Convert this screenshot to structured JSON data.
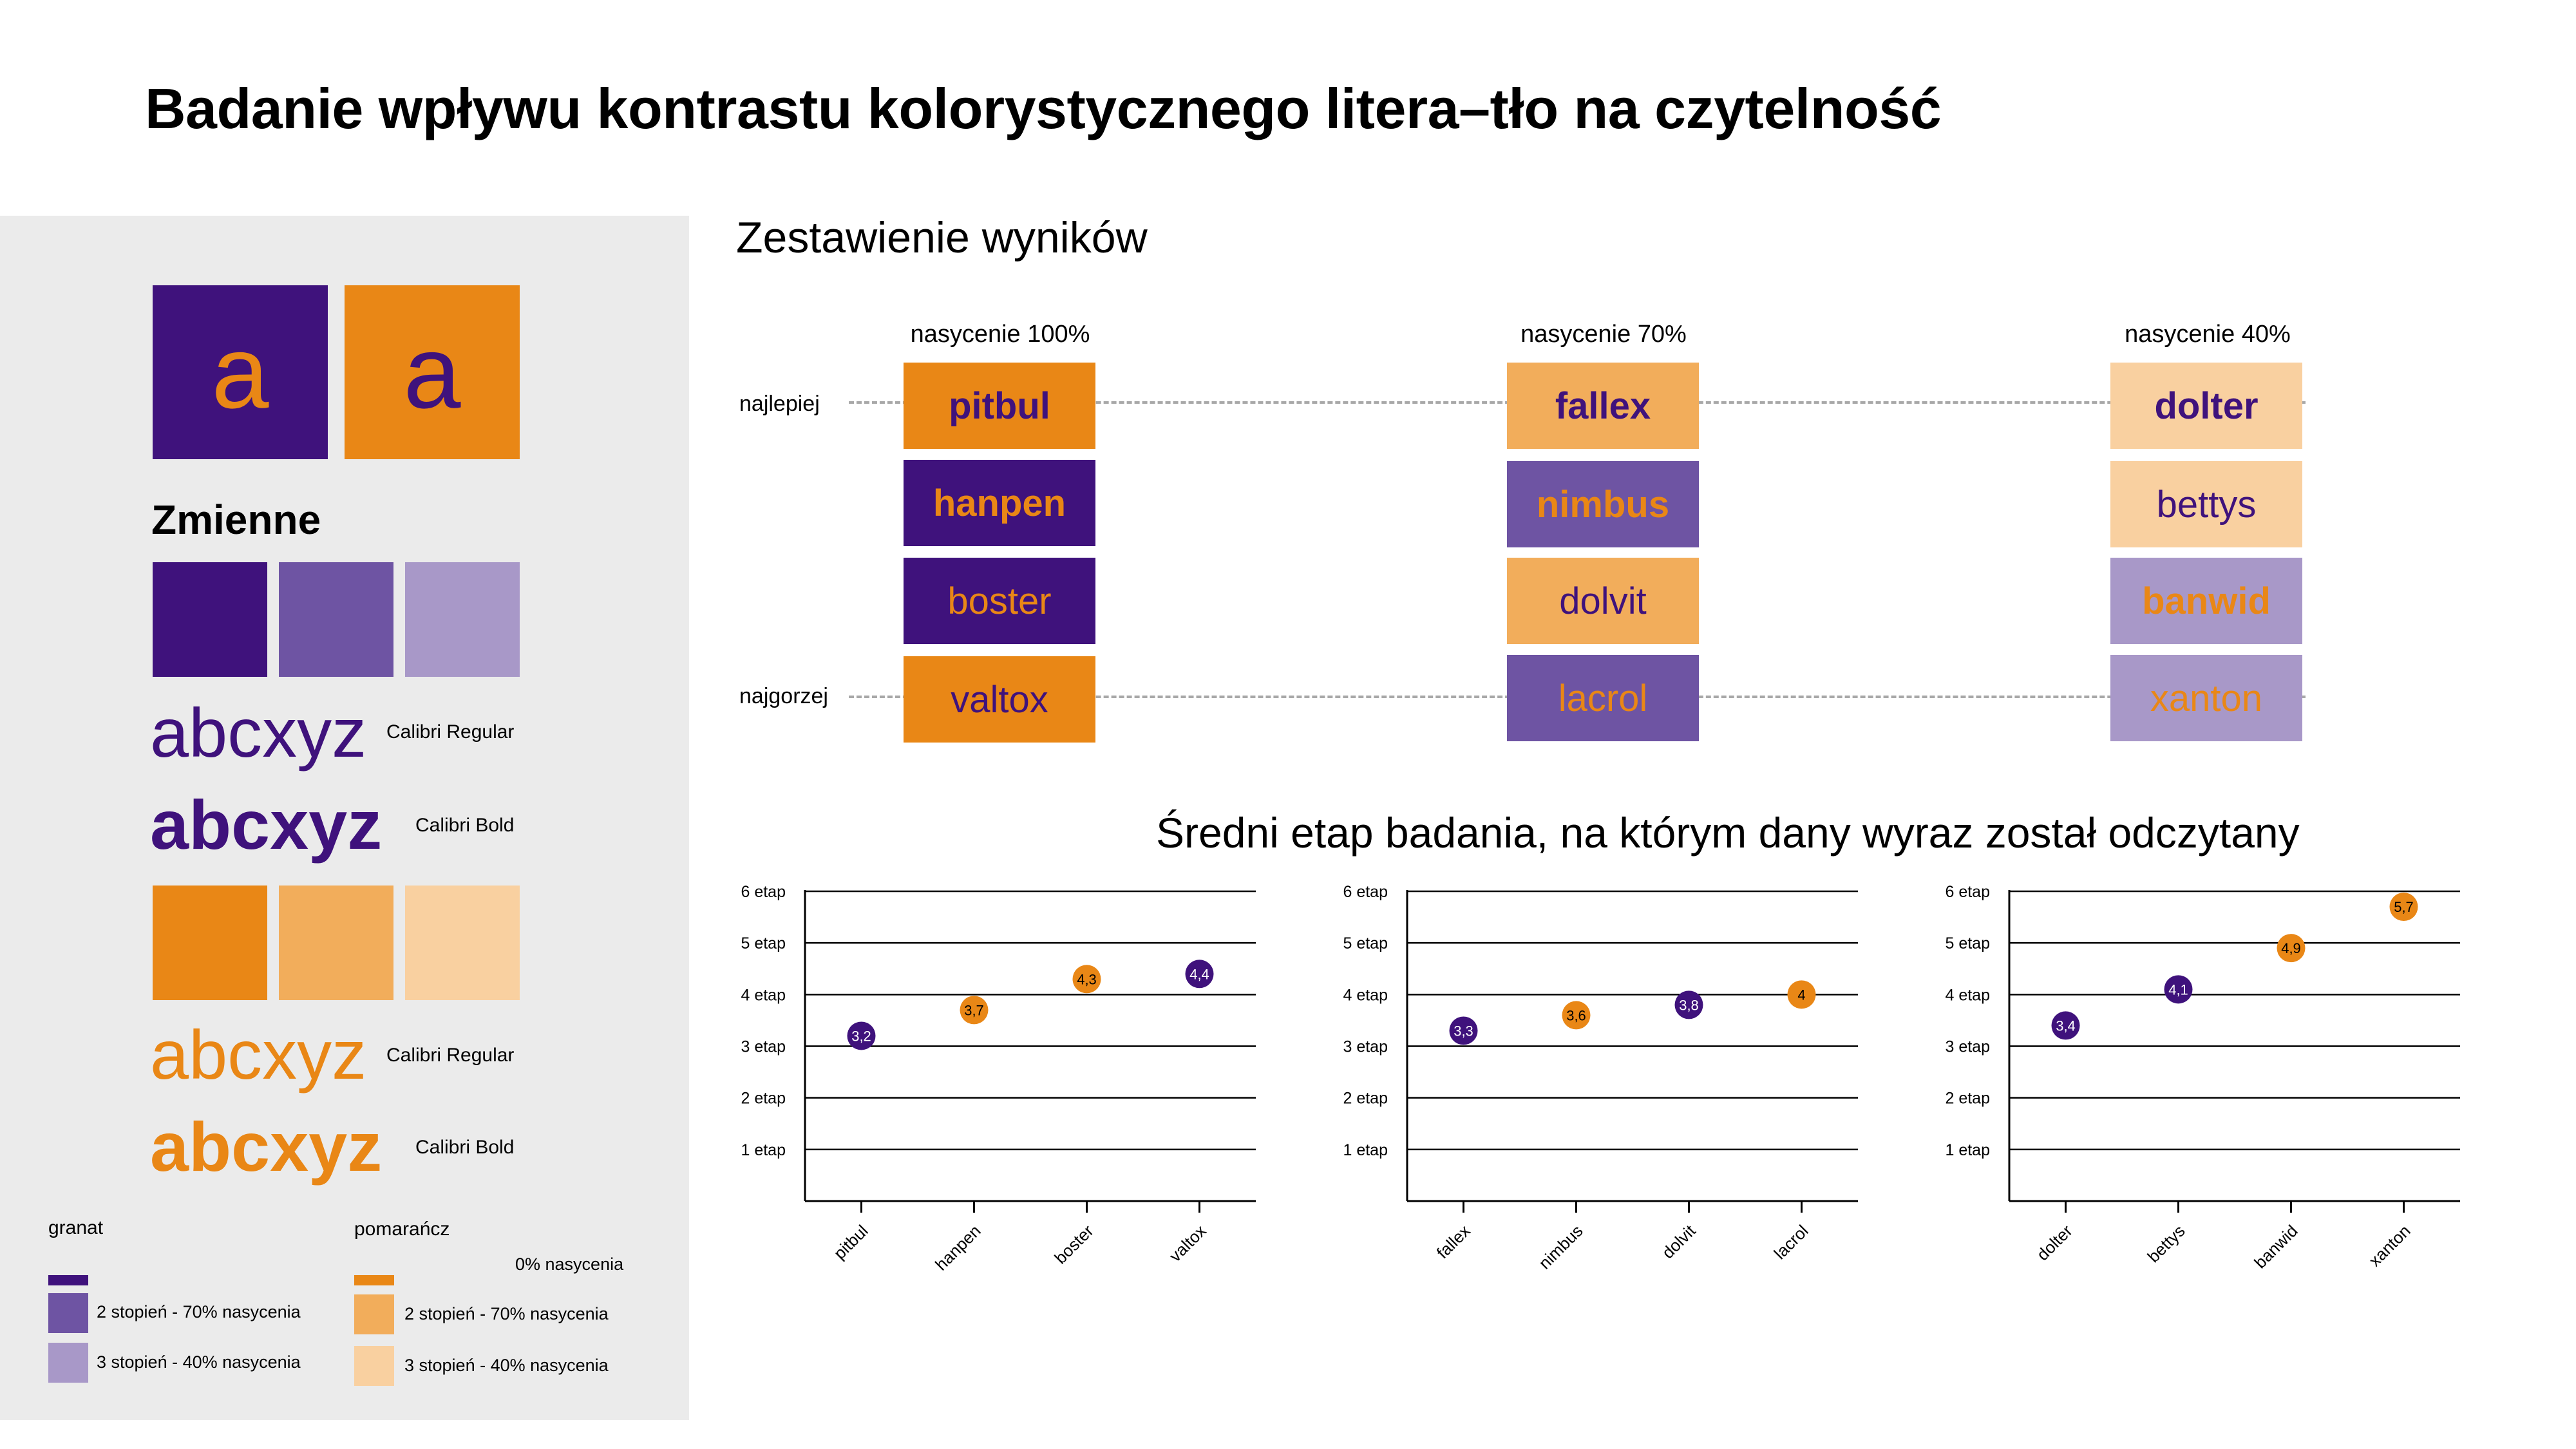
{
  "colors": {
    "granat_100": "#3f127c",
    "granat_70": "#6e54a3",
    "granat_40": "#a898c8",
    "orange_100": "#e98716",
    "orange_70": "#f2ad5b",
    "orange_40": "#f9d0a0",
    "panel_bg": "#ebebeb",
    "grid": "#000000",
    "dash": "#a8a8a8"
  },
  "title": "Badanie wpływu kontrastu kolorystycznego litera–tło na czytelność",
  "panel": {
    "letter": "a",
    "zmienne": "Zmienne",
    "samples": [
      {
        "text": "abcxyz",
        "font": "Calibri Regular"
      },
      {
        "text": "abcxyz",
        "font": "Calibri Bold"
      },
      {
        "text": "abcxyz",
        "font": "Calibri Regular"
      },
      {
        "text": "abcxyz",
        "font": "Calibri Bold"
      }
    ],
    "legend": {
      "granat": "granat",
      "pomarancz": "pomarańcz",
      "zero": "0% nasycenia",
      "granat_2": "2 stopień - 70% nasycenia",
      "granat_3": "3 stopień - 40% nasycenia",
      "orange_2": "2 stopień - 70% nasycenia",
      "orange_3": "3 stopień - 40% nasycenia"
    }
  },
  "results": {
    "title": "Zestawienie wyników",
    "best": "najlepiej",
    "worst": "najgorzej",
    "columns": [
      {
        "label": "nasycenie 100%",
        "words": [
          "pitbul",
          "hanpen",
          "boster",
          "valtox"
        ]
      },
      {
        "label": "nasycenie 70%",
        "words": [
          "fallex",
          "nimbus",
          "dolvit",
          "lacrol"
        ]
      },
      {
        "label": "nasycenie 40%",
        "words": [
          "dolter",
          "bettys",
          "banwid",
          "xanton"
        ]
      }
    ]
  },
  "charts_title": "Średni etap badania, na którym dany wyraz został odczytany",
  "chart_data": [
    {
      "type": "scatter",
      "categories": [
        "pitbul",
        "hanpen",
        "boster",
        "valtox"
      ],
      "values": [
        3.2,
        3.7,
        4.3,
        4.4
      ],
      "labels": [
        "3,2",
        "3,7",
        "4,3",
        "4,4"
      ],
      "colors": [
        "granat",
        "orange",
        "orange",
        "granat"
      ],
      "ylim": [
        0,
        6
      ],
      "yticks": [
        "1 etap",
        "2 etap",
        "3 etap",
        "4 etap",
        "5 etap",
        "6 etap"
      ],
      "grid": true
    },
    {
      "type": "scatter",
      "categories": [
        "fallex",
        "nimbus",
        "dolvit",
        "lacrol"
      ],
      "values": [
        3.3,
        3.6,
        3.8,
        4.0
      ],
      "labels": [
        "3,3",
        "3,6",
        "3,8",
        "4"
      ],
      "colors": [
        "granat",
        "orange",
        "granat",
        "orange"
      ],
      "ylim": [
        0,
        6
      ],
      "yticks": [
        "1 etap",
        "2 etap",
        "3 etap",
        "4 etap",
        "5 etap",
        "6 etap"
      ],
      "grid": true
    },
    {
      "type": "scatter",
      "categories": [
        "dolter",
        "bettys",
        "banwid",
        "xanton"
      ],
      "values": [
        3.4,
        4.1,
        4.9,
        5.7
      ],
      "labels": [
        "3,4",
        "4,1",
        "4,9",
        "5,7"
      ],
      "colors": [
        "granat",
        "granat",
        "orange",
        "orange"
      ],
      "ylim": [
        0,
        6
      ],
      "yticks": [
        "1 etap",
        "2 etap",
        "3 etap",
        "4 etap",
        "5 etap",
        "6 etap"
      ],
      "grid": true
    }
  ]
}
